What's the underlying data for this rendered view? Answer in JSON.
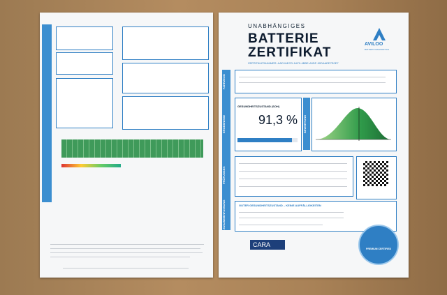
{
  "header": {
    "kicker": "UNABHÄNGIGES",
    "title_line1": "BATTERIE",
    "title_line2": "ZERTIFIKAT",
    "certificate_number": "ZERTIFIKATNUMMER: AADYAECD-1AF0-4BBE-A9DF-90DAAEE7E0E7",
    "brand": "AVILOO",
    "brand_sub": "BATTERY DIAGNOSTICS"
  },
  "sections": {
    "vehicle": "FAHRZEUG",
    "results": "ERGEBNISSE",
    "rating": "BEWERTUNG",
    "checks": "PRÜFUNGEN",
    "summary": "ZUSAMMENFASSUNG"
  },
  "results": {
    "soh_label": "GESUNDHEITSZUSTAND (SOH)",
    "soh_value": "91,3 %"
  },
  "summary": {
    "verdict": "GUTER GESUNDHEITSZUSTAND – KEINE AUFFÄLLIGKEITEN"
  },
  "footer": {
    "partner": "CARA",
    "badge": "PREMIUM CERTIFIED"
  }
}
